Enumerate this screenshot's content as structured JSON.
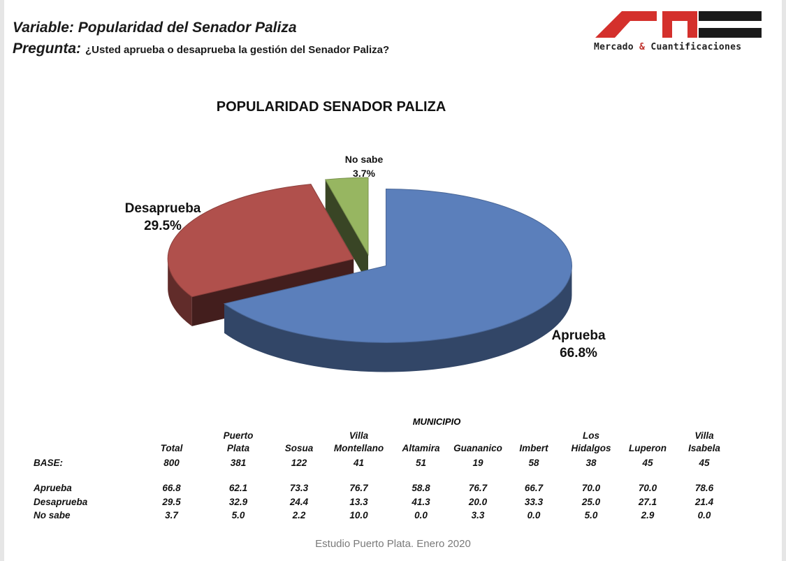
{
  "header": {
    "variable_line": "Variable: Popularidad del Senador Paliza",
    "question_label": "Pregunta",
    "question_text": "¿Usted aprueba o desaprueba la gestión del Senador Paliza?"
  },
  "logo": {
    "name_part1": "Mercado",
    "amp": "&",
    "name_part2": "Cuantificaciones",
    "colors": {
      "red": "#d4302c",
      "dark": "#1b1b1b"
    }
  },
  "chart_data": {
    "type": "pie",
    "title": "POPULARIDAD SENADOR PALIZA",
    "slices": [
      {
        "label": "Aprueba",
        "value": 66.8,
        "display": "66.8%",
        "color": "#5b7fbb"
      },
      {
        "label": "Desaprueba",
        "value": 29.5,
        "display": "29.5%",
        "color": "#b0504c"
      },
      {
        "label": "No sabe",
        "value": 3.7,
        "display": "3.7%",
        "color": "#97b661"
      }
    ]
  },
  "table": {
    "group_title": "MUNICIPIO",
    "columns": [
      [
        "",
        "Total"
      ],
      [
        "Puerto",
        "Plata"
      ],
      [
        "",
        "Sosua"
      ],
      [
        "Villa",
        "Montellano"
      ],
      [
        "",
        "Altamira"
      ],
      [
        "",
        "Guananico"
      ],
      [
        "",
        "Imbert"
      ],
      [
        "Los",
        "Hidalgos"
      ],
      [
        "",
        "Luperon"
      ],
      [
        "Villa",
        "Isabela"
      ]
    ],
    "base_label": "BASE:",
    "base": [
      "800",
      "381",
      "122",
      "41",
      "51",
      "19",
      "58",
      "38",
      "45",
      "45"
    ],
    "rows": [
      {
        "label": "Aprueba",
        "values": [
          "66.8",
          "62.1",
          "73.3",
          "76.7",
          "58.8",
          "76.7",
          "66.7",
          "70.0",
          "70.0",
          "78.6"
        ]
      },
      {
        "label": "Desaprueba",
        "values": [
          "29.5",
          "32.9",
          "24.4",
          "13.3",
          "41.3",
          "20.0",
          "33.3",
          "25.0",
          "27.1",
          "21.4"
        ]
      },
      {
        "label": "No sabe",
        "values": [
          "3.7",
          "5.0",
          "2.2",
          "10.0",
          "0.0",
          "3.3",
          "0.0",
          "5.0",
          "2.9",
          "0.0"
        ]
      }
    ]
  },
  "footer": "Estudio Puerto Plata. Enero 2020"
}
